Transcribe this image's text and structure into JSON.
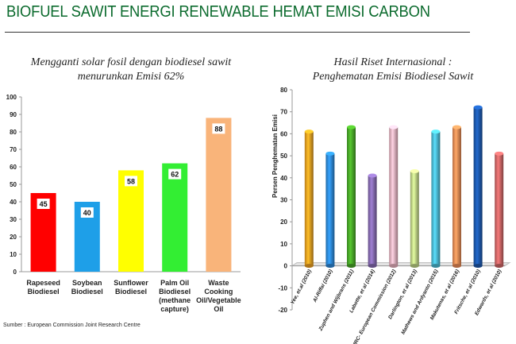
{
  "header": {
    "title": "BIOFUEL SAWIT ENERGI RENEWABLE HEMAT EMISI CARBON"
  },
  "source": "Sumber : European Commission Joint Research Centre",
  "chart_data": [
    {
      "type": "bar",
      "title_line1": "Mengganti solar fosil dengan biodiesel sawit",
      "title_line2": "menurunkan Emisi 62%",
      "categories": [
        [
          "Rapeseed",
          "Biodiesel"
        ],
        [
          "Soybean",
          "Biodiesel"
        ],
        [
          "Sunflower",
          "Biodiesel"
        ],
        [
          "Palm Oil",
          "Biodiesel",
          "(methane",
          "capture)"
        ],
        [
          "Waste Cooking",
          "Oil/Vegetable",
          "Oil"
        ]
      ],
      "values": [
        45,
        40,
        58,
        62,
        88
      ],
      "colors": [
        "#ff0000",
        "#1e9fe8",
        "#ffff00",
        "#33ee33",
        "#f9b47a"
      ],
      "ylim": [
        0,
        100
      ],
      "yticks": [
        0,
        10,
        20,
        30,
        40,
        50,
        60,
        70,
        80,
        90,
        100
      ],
      "grid": false
    },
    {
      "type": "bar",
      "style": "3d-cylinder",
      "title_line1": "Hasil Riset Internasional :",
      "title_line2": "Penghematan Emisi Biodiesel Sawit",
      "ylabel": "Persen Penghematan Emisi",
      "categories": [
        "Yee, et.al (2010)",
        "Al-Riffai (2010)",
        "Zuphen and Wijbrans (2011)",
        "Labotte, et al (2014)",
        "JRC- European Commission (2012)",
        "Darlington, et al (2013)",
        "Mathews and Ardyanto (2015)",
        "Makutenas, et al (2016)",
        "Fritsche, et al (2010)",
        "Edwards, et al (2010)"
      ],
      "values": [
        61,
        51,
        63,
        41,
        63,
        43,
        61,
        63,
        72,
        51
      ],
      "colors": [
        "#f5a623",
        "#2f8ee0",
        "#4caf2a",
        "#8b6fb8",
        "#f2b8c6",
        "#c6dc8c",
        "#4fc2dc",
        "#f5925a",
        "#1e5cb3",
        "#d66a6a"
      ],
      "ylim": [
        -20,
        80
      ],
      "yticks": [
        -20,
        -10,
        0,
        10,
        20,
        30,
        40,
        50,
        60,
        70,
        80
      ],
      "grid": false
    }
  ]
}
